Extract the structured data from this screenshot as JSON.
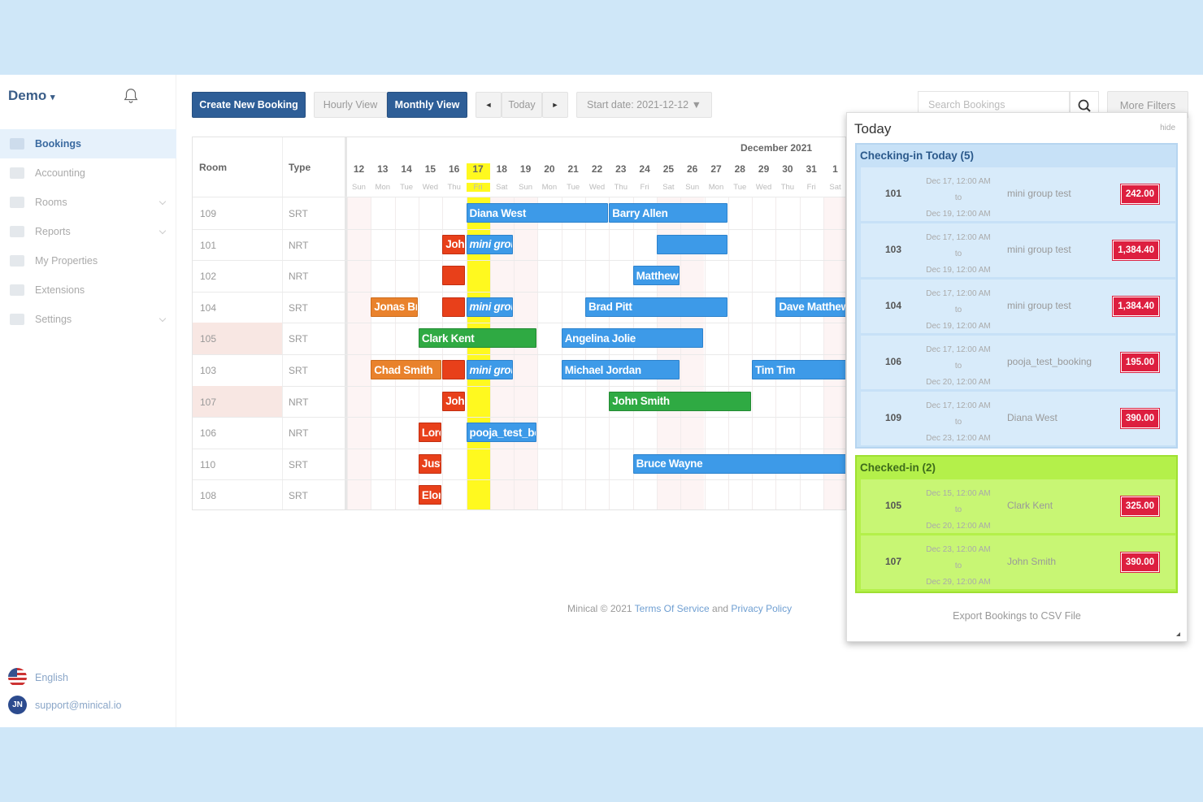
{
  "sidebar": {
    "brand": "Demo",
    "items": [
      {
        "label": "Bookings",
        "active": true,
        "icon": "calendar-icon",
        "chevron": false
      },
      {
        "label": "Accounting",
        "active": false,
        "icon": "bank-icon",
        "chevron": false
      },
      {
        "label": "Rooms",
        "active": false,
        "icon": "door-icon",
        "chevron": true
      },
      {
        "label": "Reports",
        "active": false,
        "icon": "chart-line-icon",
        "chevron": true
      },
      {
        "label": "My Properties",
        "active": false,
        "icon": "building-icon",
        "chevron": false
      },
      {
        "label": "Extensions",
        "active": false,
        "icon": "grid-icon",
        "chevron": false
      },
      {
        "label": "Settings",
        "active": false,
        "icon": "gear-icon",
        "chevron": true
      }
    ],
    "language": "English",
    "user_initials": "JN",
    "support_email": "support@minical.io"
  },
  "toolbar": {
    "create_label": "Create New Booking",
    "hourly_label": "Hourly View",
    "monthly_label": "Monthly View",
    "prev_label": "◄",
    "today_label": "Today",
    "next_label": "►",
    "start_date_label": "Start date: 2021-12-12 ▼",
    "search_placeholder": "Search Bookings",
    "more_filters_label": "More Filters"
  },
  "calendar": {
    "month_label": "December 2021",
    "room_header": "Room",
    "type_header": "Type",
    "days": [
      {
        "n": "12",
        "w": "Sun",
        "weekend": true
      },
      {
        "n": "13",
        "w": "Mon"
      },
      {
        "n": "14",
        "w": "Tue"
      },
      {
        "n": "15",
        "w": "Wed"
      },
      {
        "n": "16",
        "w": "Thu"
      },
      {
        "n": "17",
        "w": "Fri",
        "today": true
      },
      {
        "n": "18",
        "w": "Sat",
        "weekend": true
      },
      {
        "n": "19",
        "w": "Sun",
        "weekend": true
      },
      {
        "n": "20",
        "w": "Mon"
      },
      {
        "n": "21",
        "w": "Tue"
      },
      {
        "n": "22",
        "w": "Wed"
      },
      {
        "n": "23",
        "w": "Thu"
      },
      {
        "n": "24",
        "w": "Fri"
      },
      {
        "n": "25",
        "w": "Sat",
        "weekend": true
      },
      {
        "n": "26",
        "w": "Sun",
        "weekend": true
      },
      {
        "n": "27",
        "w": "Mon"
      },
      {
        "n": "28",
        "w": "Tue"
      },
      {
        "n": "29",
        "w": "Wed"
      },
      {
        "n": "30",
        "w": "Thu"
      },
      {
        "n": "31",
        "w": "Fri"
      },
      {
        "n": "1",
        "w": "Sat",
        "weekend": true
      }
    ],
    "rooms": [
      {
        "room": "109",
        "type": "SRT"
      },
      {
        "room": "101",
        "type": "NRT"
      },
      {
        "room": "102",
        "type": "NRT"
      },
      {
        "room": "104",
        "type": "SRT"
      },
      {
        "room": "105",
        "type": "SRT",
        "highlight": true
      },
      {
        "room": "103",
        "type": "SRT"
      },
      {
        "room": "107",
        "type": "NRT",
        "highlight": true
      },
      {
        "room": "106",
        "type": "NRT"
      },
      {
        "room": "110",
        "type": "SRT"
      },
      {
        "room": "108",
        "type": "SRT"
      }
    ],
    "bookings": [
      {
        "row": 0,
        "start": 5,
        "span": 6,
        "label": "Diana West",
        "color": "blue"
      },
      {
        "row": 0,
        "start": 11,
        "span": 5,
        "label": "Barry Allen",
        "color": "blue"
      },
      {
        "row": 1,
        "start": 4,
        "span": 1,
        "label": "John",
        "color": "red"
      },
      {
        "row": 1,
        "start": 5,
        "span": 2,
        "label": "mini group test",
        "color": "blue",
        "italic": true
      },
      {
        "row": 1,
        "start": 13,
        "span": 3,
        "label": "",
        "color": "blue"
      },
      {
        "row": 2,
        "start": 4,
        "span": 1,
        "label": "",
        "color": "red"
      },
      {
        "row": 2,
        "start": 12,
        "span": 2,
        "label": "Matthew",
        "color": "blue"
      },
      {
        "row": 3,
        "start": 1,
        "span": 2,
        "label": "Jonas Brothers",
        "color": "orange"
      },
      {
        "row": 3,
        "start": 4,
        "span": 1,
        "label": "",
        "color": "red"
      },
      {
        "row": 3,
        "start": 5,
        "span": 2,
        "label": "mini group test",
        "color": "blue",
        "italic": true
      },
      {
        "row": 3,
        "start": 10,
        "span": 6,
        "label": "Brad Pitt",
        "color": "blue"
      },
      {
        "row": 3,
        "start": 18,
        "span": 3,
        "label": "Dave Matthews",
        "color": "blue"
      },
      {
        "row": 4,
        "start": 3,
        "span": 5,
        "label": "Clark Kent",
        "color": "green"
      },
      {
        "row": 4,
        "start": 9,
        "span": 6,
        "label": "Angelina Jolie",
        "color": "blue"
      },
      {
        "row": 5,
        "start": 1,
        "span": 3,
        "label": "Chad Smith",
        "color": "orange"
      },
      {
        "row": 5,
        "start": 4,
        "span": 1,
        "label": "",
        "color": "red"
      },
      {
        "row": 5,
        "start": 5,
        "span": 2,
        "label": "mini group test",
        "color": "blue",
        "italic": true
      },
      {
        "row": 5,
        "start": 9,
        "span": 5,
        "label": "Michael Jordan",
        "color": "blue"
      },
      {
        "row": 5,
        "start": 17,
        "span": 4,
        "label": "Tim Tim",
        "color": "blue"
      },
      {
        "row": 6,
        "start": 4,
        "span": 1,
        "label": "John",
        "color": "red"
      },
      {
        "row": 6,
        "start": 11,
        "span": 6,
        "label": "John Smith",
        "color": "green"
      },
      {
        "row": 7,
        "start": 3,
        "span": 1,
        "label": "Lorem",
        "color": "red"
      },
      {
        "row": 7,
        "start": 5,
        "span": 3,
        "label": "pooja_test_booking",
        "color": "blue"
      },
      {
        "row": 8,
        "start": 3,
        "span": 1,
        "label": "Justin",
        "color": "red"
      },
      {
        "row": 8,
        "start": 12,
        "span": 9,
        "label": "Bruce Wayne",
        "color": "blue"
      },
      {
        "row": 9,
        "start": 3,
        "span": 1,
        "label": "Elon",
        "color": "red"
      }
    ]
  },
  "footer": {
    "copyright": "Minical © 2021",
    "terms": "Terms Of Service",
    "and": "and",
    "privacy": "Privacy Policy"
  },
  "panel": {
    "title": "Today",
    "hide": "hide",
    "checking_in": {
      "title": "Checking-in Today (5)",
      "rows": [
        {
          "room": "101",
          "from": "Dec 17, 12:00 AM",
          "to": "to",
          "until": "Dec 19, 12:00 AM",
          "name": "mini group test",
          "amount": "242.00"
        },
        {
          "room": "103",
          "from": "Dec 17, 12:00 AM",
          "to": "to",
          "until": "Dec 19, 12:00 AM",
          "name": "mini group test",
          "amount": "1,384.40"
        },
        {
          "room": "104",
          "from": "Dec 17, 12:00 AM",
          "to": "to",
          "until": "Dec 19, 12:00 AM",
          "name": "mini group test",
          "amount": "1,384.40"
        },
        {
          "room": "106",
          "from": "Dec 17, 12:00 AM",
          "to": "to",
          "until": "Dec 20, 12:00 AM",
          "name": "pooja_test_booking",
          "amount": "195.00"
        },
        {
          "room": "109",
          "from": "Dec 17, 12:00 AM",
          "to": "to",
          "until": "Dec 23, 12:00 AM",
          "name": "Diana West",
          "amount": "390.00"
        }
      ]
    },
    "checked_in": {
      "title": "Checked-in (2)",
      "rows": [
        {
          "room": "105",
          "from": "Dec 15, 12:00 AM",
          "to": "to",
          "until": "Dec 20, 12:00 AM",
          "name": "Clark Kent",
          "amount": "325.00"
        },
        {
          "room": "107",
          "from": "Dec 23, 12:00 AM",
          "to": "to",
          "until": "Dec 29, 12:00 AM",
          "name": "John Smith",
          "amount": "390.00"
        }
      ]
    },
    "export": "Export Bookings to CSV File"
  },
  "colors": {
    "primary": "#2e5e97",
    "booking_blue": "#3d9ae8",
    "booking_green": "#2faa43",
    "booking_orange": "#e9822c",
    "booking_red": "#e8401a",
    "today_yellow": "#fff91f",
    "amount_badge": "#dd1f3f",
    "checking_in_bg": "#c7e1f7",
    "checked_in_bg": "#b4f04a"
  }
}
